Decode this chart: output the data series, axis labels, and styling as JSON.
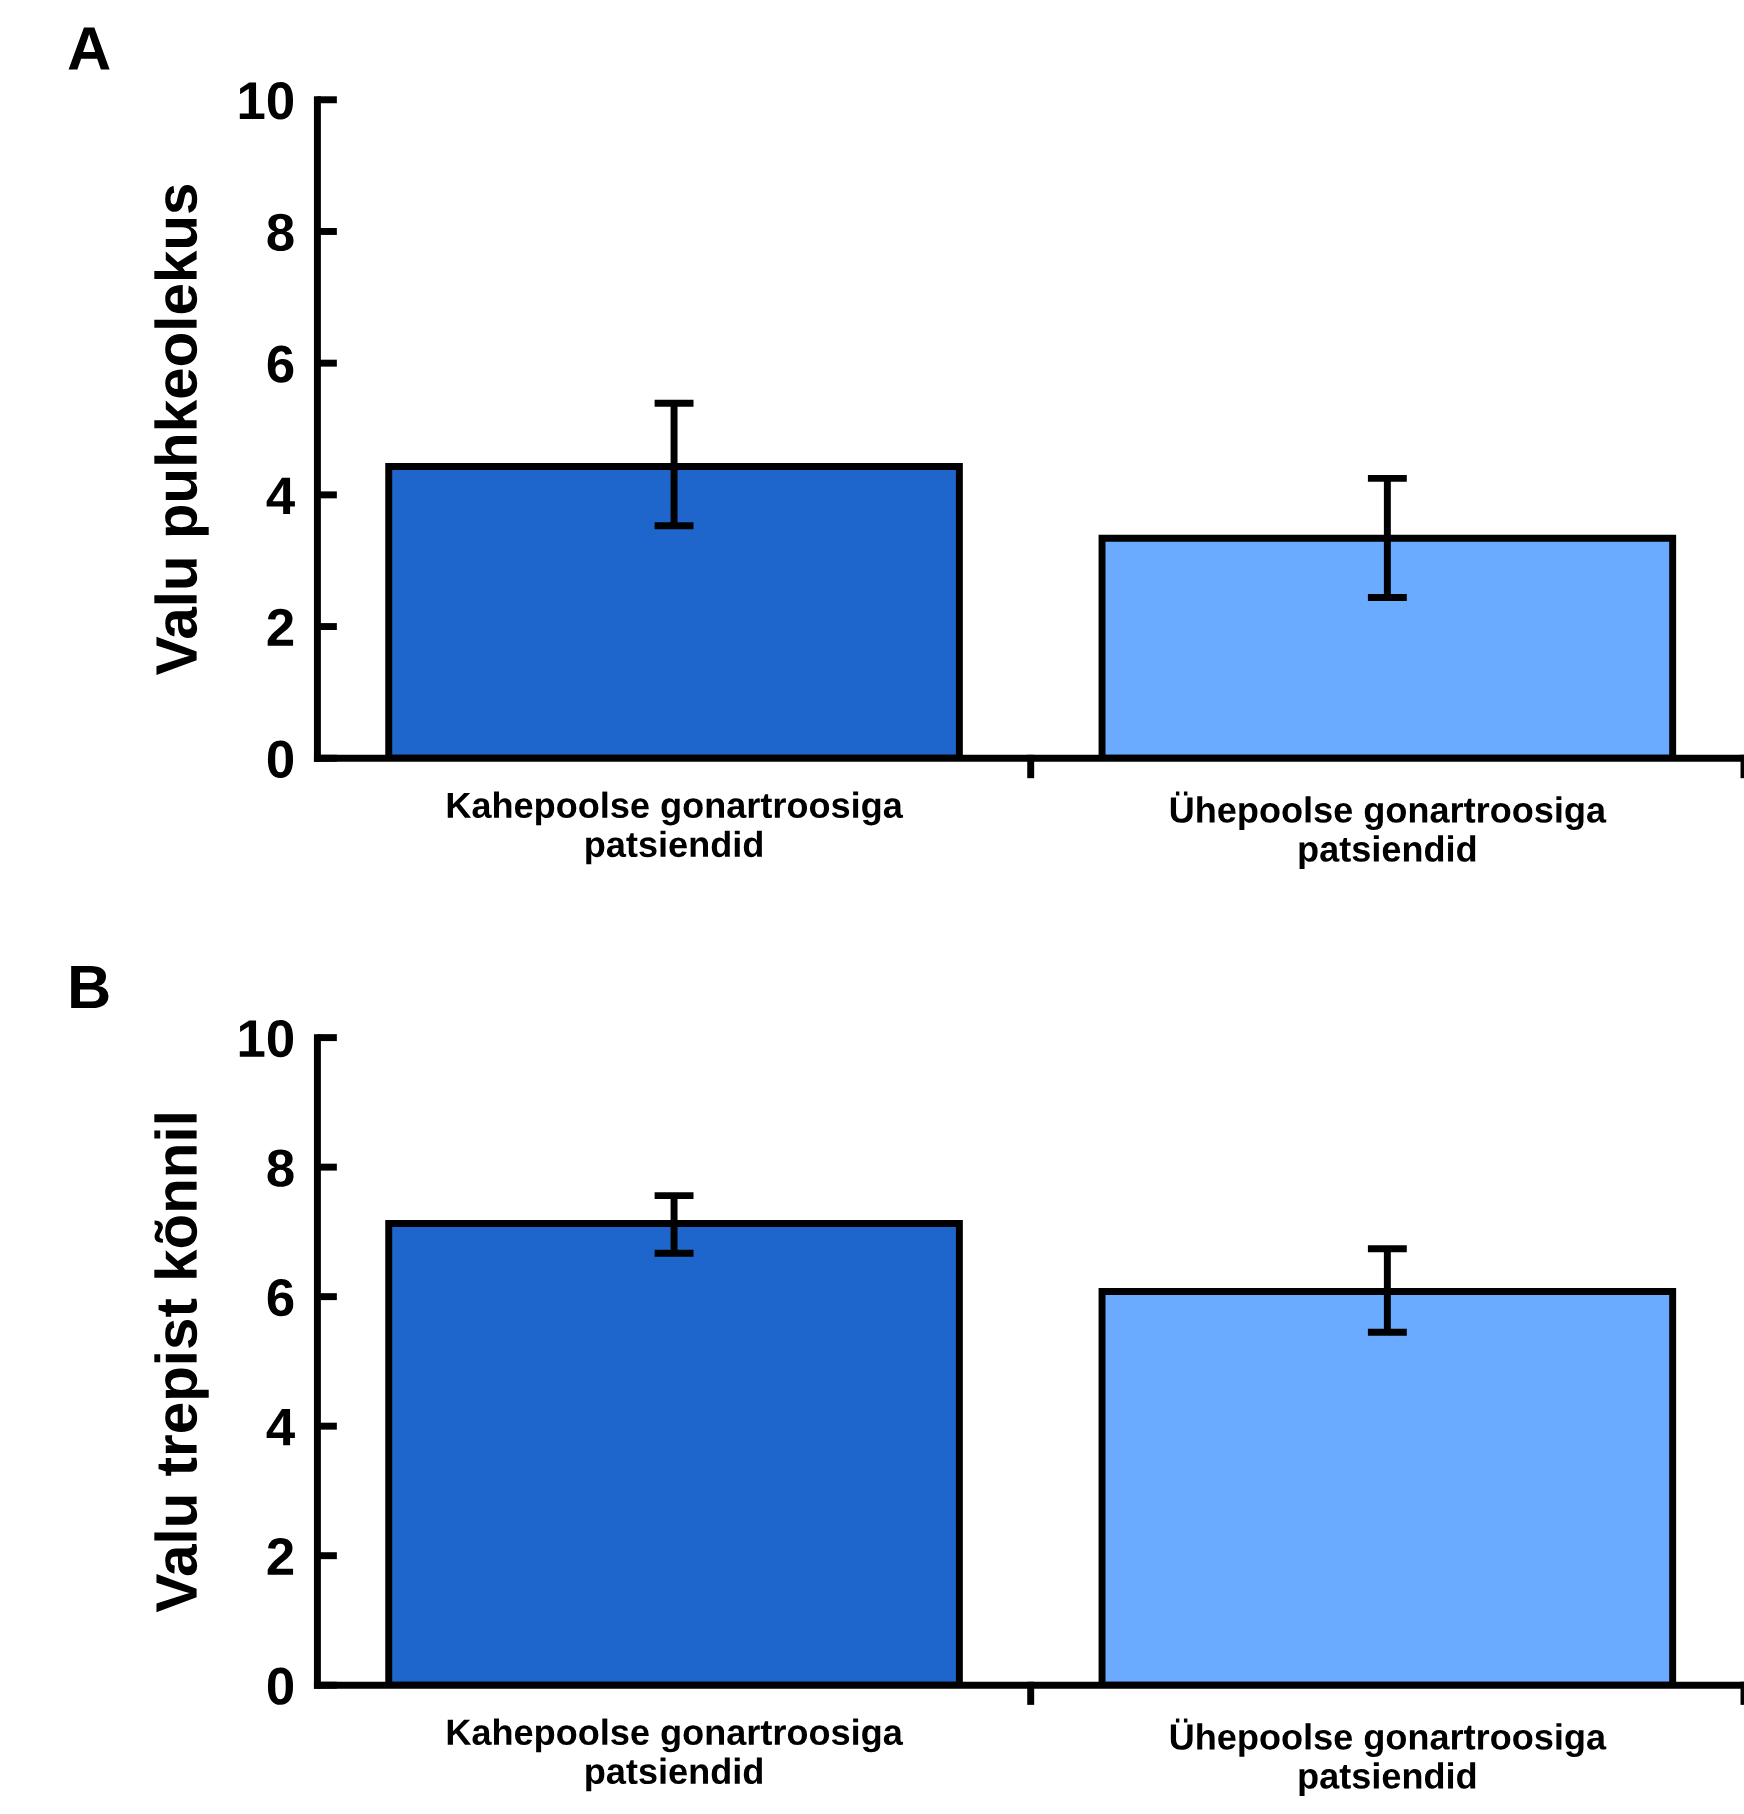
{
  "chart_data": [
    {
      "type": "bar",
      "annotations": [
        "A"
      ],
      "ylabel": "Valu puhkeolekus",
      "categories": [
        "Kahepoolse gonartroosiga\npatsiendid",
        "Ühepoolse gonartroosiga\npatsiendid"
      ],
      "values": [
        4.43,
        3.34
      ],
      "errors": [
        [
          3.53,
          5.39
        ],
        [
          2.44,
          4.25
        ]
      ],
      "colors": [
        "#1f66cc",
        "#6aaaff"
      ],
      "ylim": [
        0,
        10
      ],
      "yticks": [
        0,
        2,
        4,
        6,
        8,
        10
      ],
      "grid": false
    },
    {
      "type": "bar",
      "annotations": [
        "B"
      ],
      "ylabel": "Valu trepist kõnnil",
      "categories": [
        "Kahepoolse gonartroosiga\npatsiendid",
        "Ühepoolse gonartroosiga\npatsiendid"
      ],
      "values": [
        7.13,
        6.08
      ],
      "errors": [
        [
          6.67,
          7.56
        ],
        [
          5.45,
          6.74
        ]
      ],
      "colors": [
        "#1f66cc",
        "#6aaaff"
      ],
      "ylim": [
        0,
        10
      ],
      "yticks": [
        0,
        2,
        4,
        6,
        8,
        10
      ],
      "grid": false
    }
  ]
}
